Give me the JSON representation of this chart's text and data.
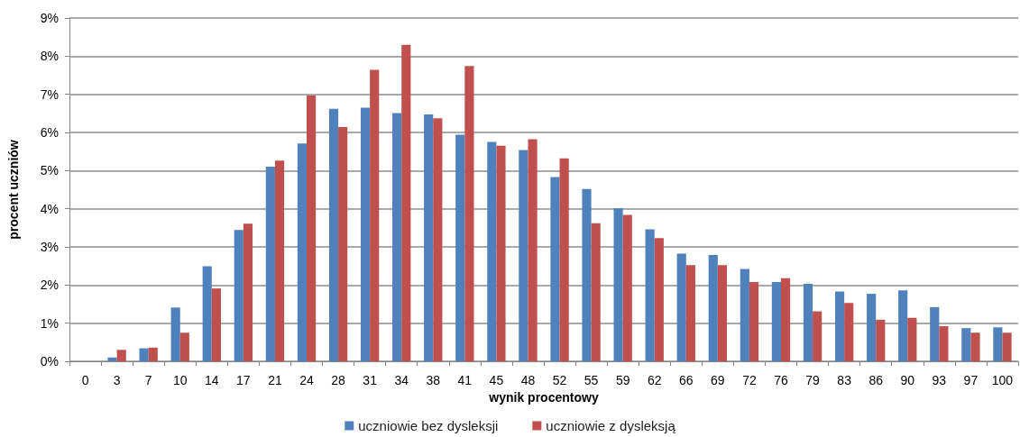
{
  "chart_data": {
    "type": "bar",
    "xlabel": "wynik procentowy",
    "ylabel": "procent uczniów",
    "categories": [
      "0",
      "3",
      "7",
      "10",
      "14",
      "17",
      "21",
      "24",
      "28",
      "31",
      "34",
      "38",
      "41",
      "45",
      "48",
      "52",
      "55",
      "59",
      "62",
      "66",
      "69",
      "72",
      "76",
      "79",
      "83",
      "86",
      "90",
      "93",
      "97",
      "100"
    ],
    "series": [
      {
        "name": "uczniowie bez dysleksji",
        "color": "#4f81bd",
        "values": [
          0,
          0.1,
          0.34,
          1.41,
          2.49,
          3.44,
          5.1,
          5.71,
          6.62,
          6.65,
          6.51,
          6.47,
          5.94,
          5.75,
          5.54,
          4.83,
          4.52,
          4.01,
          3.46,
          2.82,
          2.79,
          2.42,
          2.08,
          2.03,
          1.83,
          1.77,
          1.86,
          1.42,
          0.87,
          0.89
        ]
      },
      {
        "name": "uczniowie z dysleksją",
        "color": "#c0504d",
        "values": [
          0,
          0.3,
          0.36,
          0.75,
          1.91,
          3.61,
          5.26,
          6.97,
          6.14,
          7.64,
          8.3,
          6.37,
          7.74,
          5.65,
          5.82,
          5.32,
          3.62,
          3.84,
          3.23,
          2.52,
          2.52,
          2.08,
          2.18,
          1.31,
          1.53,
          1.09,
          1.14,
          0.92,
          0.75,
          0.75
        ]
      }
    ],
    "ylim": [
      0,
      9
    ],
    "yticks": [
      {
        "value": 0,
        "label": "0%"
      },
      {
        "value": 1,
        "label": "1%"
      },
      {
        "value": 2,
        "label": "2%"
      },
      {
        "value": 3,
        "label": "3%"
      },
      {
        "value": 4,
        "label": "4%"
      },
      {
        "value": 5,
        "label": "5%"
      },
      {
        "value": 6,
        "label": "6%"
      },
      {
        "value": 7,
        "label": "7%"
      },
      {
        "value": 8,
        "label": "8%"
      },
      {
        "value": 9,
        "label": "9%"
      }
    ],
    "grid": "y",
    "legend": "bottom"
  }
}
